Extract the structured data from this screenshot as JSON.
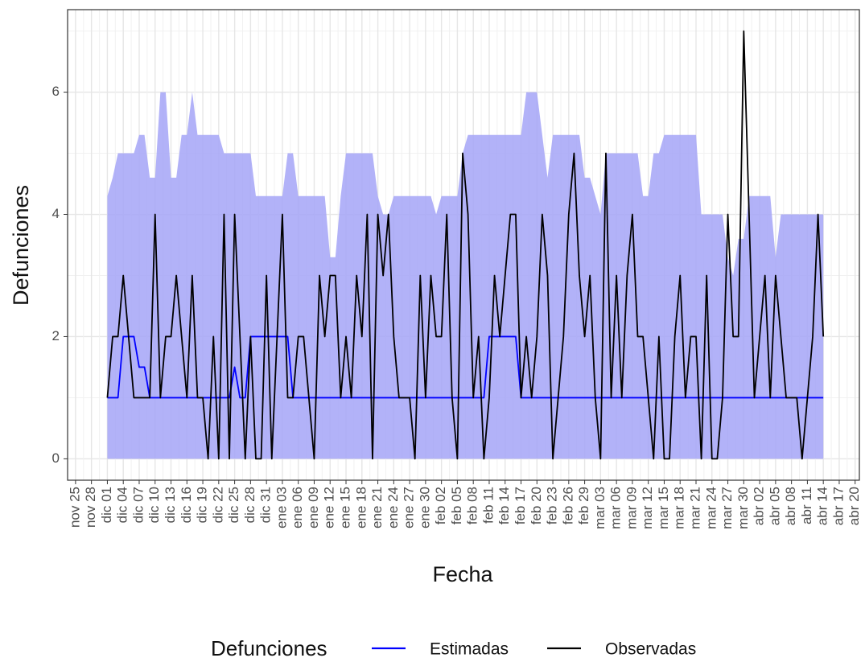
{
  "chart_data": {
    "type": "line",
    "x_label": "Fecha",
    "y_label": "Defunciones",
    "legend_title": "Defunciones",
    "xlim": [
      -1.5,
      147.8
    ],
    "ylim": [
      -0.35,
      7.35
    ],
    "yticks": [
      0,
      2,
      4,
      6
    ],
    "grid": true,
    "legend_position": "bottom",
    "xticks": [
      {
        "value": 0,
        "label": "nov 25"
      },
      {
        "value": 3,
        "label": "nov 28"
      },
      {
        "value": 6,
        "label": "dic 01"
      },
      {
        "value": 9,
        "label": "dic 04"
      },
      {
        "value": 12,
        "label": "dic 07"
      },
      {
        "value": 15,
        "label": "dic 10"
      },
      {
        "value": 18,
        "label": "dic 13"
      },
      {
        "value": 21,
        "label": "dic 16"
      },
      {
        "value": 24,
        "label": "dic 19"
      },
      {
        "value": 27,
        "label": "dic 22"
      },
      {
        "value": 30,
        "label": "dic 25"
      },
      {
        "value": 33,
        "label": "dic 28"
      },
      {
        "value": 36,
        "label": "dic 31"
      },
      {
        "value": 39,
        "label": "ene 03"
      },
      {
        "value": 42,
        "label": "ene 06"
      },
      {
        "value": 45,
        "label": "ene 09"
      },
      {
        "value": 48,
        "label": "ene 12"
      },
      {
        "value": 51,
        "label": "ene 15"
      },
      {
        "value": 54,
        "label": "ene 18"
      },
      {
        "value": 57,
        "label": "ene 21"
      },
      {
        "value": 60,
        "label": "ene 24"
      },
      {
        "value": 63,
        "label": "ene 27"
      },
      {
        "value": 66,
        "label": "ene 30"
      },
      {
        "value": 69,
        "label": "feb 02"
      },
      {
        "value": 72,
        "label": "feb 05"
      },
      {
        "value": 75,
        "label": "feb 08"
      },
      {
        "value": 78,
        "label": "feb 11"
      },
      {
        "value": 81,
        "label": "feb 14"
      },
      {
        "value": 84,
        "label": "feb 17"
      },
      {
        "value": 87,
        "label": "feb 20"
      },
      {
        "value": 90,
        "label": "feb 23"
      },
      {
        "value": 93,
        "label": "feb 26"
      },
      {
        "value": 96,
        "label": "feb 29"
      },
      {
        "value": 99,
        "label": "mar 03"
      },
      {
        "value": 102,
        "label": "mar 06"
      },
      {
        "value": 105,
        "label": "mar 09"
      },
      {
        "value": 108,
        "label": "mar 12"
      },
      {
        "value": 111,
        "label": "mar 15"
      },
      {
        "value": 114,
        "label": "mar 18"
      },
      {
        "value": 117,
        "label": "mar 21"
      },
      {
        "value": 120,
        "label": "mar 24"
      },
      {
        "value": 123,
        "label": "mar 27"
      },
      {
        "value": 126,
        "label": "mar 30"
      },
      {
        "value": 129,
        "label": "abr 02"
      },
      {
        "value": 132,
        "label": "abr 05"
      },
      {
        "value": 135,
        "label": "abr 08"
      },
      {
        "value": 138,
        "label": "abr 11"
      },
      {
        "value": 141,
        "label": "abr 14"
      },
      {
        "value": 144,
        "label": "abr 17"
      },
      {
        "value": 147,
        "label": "abr 20"
      }
    ],
    "x": [
      6,
      7,
      8,
      9,
      10,
      11,
      12,
      13,
      14,
      15,
      16,
      17,
      18,
      19,
      20,
      21,
      22,
      23,
      24,
      25,
      26,
      27,
      28,
      29,
      30,
      31,
      32,
      33,
      34,
      35,
      36,
      37,
      38,
      39,
      40,
      41,
      42,
      43,
      44,
      45,
      46,
      47,
      48,
      49,
      50,
      51,
      52,
      53,
      54,
      55,
      56,
      57,
      58,
      59,
      60,
      61,
      62,
      63,
      64,
      65,
      66,
      67,
      68,
      69,
      70,
      71,
      72,
      73,
      74,
      75,
      76,
      77,
      78,
      79,
      80,
      81,
      82,
      83,
      84,
      85,
      86,
      87,
      88,
      89,
      90,
      91,
      92,
      93,
      94,
      95,
      96,
      97,
      98,
      99,
      100,
      101,
      102,
      103,
      104,
      105,
      106,
      107,
      108,
      109,
      110,
      111,
      112,
      113,
      114,
      115,
      116,
      117,
      118,
      119,
      120,
      121,
      122,
      123,
      124,
      125,
      126,
      127,
      128,
      129,
      130,
      131,
      132,
      133,
      134,
      135,
      136,
      137,
      138,
      139,
      140,
      141
    ],
    "band": {
      "color": "#a5a5f7",
      "upper": [
        4.3,
        4.6,
        5,
        5,
        5,
        5,
        5.3,
        5.3,
        4.6,
        4.6,
        6,
        6,
        4.6,
        4.6,
        5.3,
        5.3,
        6,
        5.3,
        5.3,
        5.3,
        5.3,
        5.3,
        5,
        5,
        5,
        5,
        5,
        5,
        4.3,
        4.3,
        4.3,
        4.3,
        4.3,
        4.3,
        5,
        5,
        4.3,
        4.3,
        4.3,
        4.3,
        4.3,
        4.3,
        3.3,
        3.3,
        4.3,
        5,
        5,
        5,
        5,
        5,
        5,
        4.3,
        4,
        4,
        4.3,
        4.3,
        4.3,
        4.3,
        4.3,
        4.3,
        4.3,
        4.3,
        4,
        4.3,
        4.3,
        4.3,
        4.3,
        5,
        5.3,
        5.3,
        5.3,
        5.3,
        5.3,
        5.3,
        5.3,
        5.3,
        5.3,
        5.3,
        5.3,
        6,
        6,
        6,
        5.3,
        4.6,
        5.3,
        5.3,
        5.3,
        5.3,
        5.3,
        5.3,
        4.6,
        4.6,
        4.3,
        4,
        5,
        5,
        5,
        5,
        5,
        5,
        5,
        4.3,
        4.3,
        5,
        5,
        5.3,
        5.3,
        5.3,
        5.3,
        5.3,
        5.3,
        5.3,
        4,
        4,
        4,
        4,
        4,
        3.3,
        3,
        3.6,
        3.6,
        4.3,
        4.3,
        4.3,
        4.3,
        4.3,
        3.3,
        4,
        4,
        4,
        4,
        4,
        4,
        4,
        4,
        4
      ]
    },
    "series": [
      {
        "name": "Estimadas",
        "color": "#0000ff",
        "values": [
          1,
          1,
          1,
          2,
          2,
          2,
          1.5,
          1.5,
          1,
          1,
          1,
          1,
          1,
          1,
          1,
          1,
          1,
          1,
          1,
          1,
          1,
          1,
          1,
          1,
          1.5,
          1,
          1,
          2,
          2,
          2,
          2,
          2,
          2,
          2,
          2,
          1,
          1,
          1,
          1,
          1,
          1,
          1,
          1,
          1,
          1,
          1,
          1,
          1,
          1,
          1,
          1,
          1,
          1,
          1,
          1,
          1,
          1,
          1,
          1,
          1,
          1,
          1,
          1,
          1,
          1,
          1,
          1,
          1,
          1,
          1,
          1,
          1,
          2,
          2,
          2,
          2,
          2,
          2,
          1,
          1,
          1,
          1,
          1,
          1,
          1,
          1,
          1,
          1,
          1,
          1,
          1,
          1,
          1,
          1,
          1,
          1,
          1,
          1,
          1,
          1,
          1,
          1,
          1,
          1,
          1,
          1,
          1,
          1,
          1,
          1,
          1,
          1,
          1,
          1,
          1,
          1,
          1,
          1,
          1,
          1,
          1,
          1,
          1,
          1,
          1,
          1,
          1,
          1,
          1,
          1,
          1,
          1,
          1,
          1,
          1,
          1
        ]
      },
      {
        "name": "Observadas",
        "color": "#000000",
        "values": [
          1,
          2,
          2,
          3,
          2,
          1,
          1,
          1,
          1,
          4,
          1,
          2,
          2,
          3,
          2,
          1,
          3,
          1,
          1,
          0,
          2,
          0,
          4,
          0,
          4,
          2,
          0,
          2,
          0,
          0,
          3,
          0,
          2,
          4,
          1,
          1,
          2,
          2,
          1,
          0,
          3,
          2,
          3,
          3,
          1,
          2,
          1,
          3,
          2,
          4,
          0,
          4,
          3,
          4,
          2,
          1,
          1,
          1,
          0,
          3,
          1,
          3,
          2,
          2,
          4,
          1,
          0,
          5,
          4,
          1,
          2,
          0,
          1,
          3,
          2,
          3,
          4,
          4,
          1,
          2,
          1,
          2,
          4,
          3,
          0,
          1,
          2,
          4,
          5,
          3,
          2,
          3,
          1,
          0,
          5,
          1,
          3,
          1,
          3,
          4,
          2,
          2,
          1,
          0,
          2,
          0,
          0,
          2,
          3,
          1,
          2,
          2,
          0,
          3,
          0,
          0,
          1,
          4,
          2,
          2,
          7,
          4,
          1,
          2,
          3,
          1,
          3,
          2,
          1,
          1,
          1,
          0,
          1,
          2,
          4,
          2
        ]
      }
    ]
  }
}
